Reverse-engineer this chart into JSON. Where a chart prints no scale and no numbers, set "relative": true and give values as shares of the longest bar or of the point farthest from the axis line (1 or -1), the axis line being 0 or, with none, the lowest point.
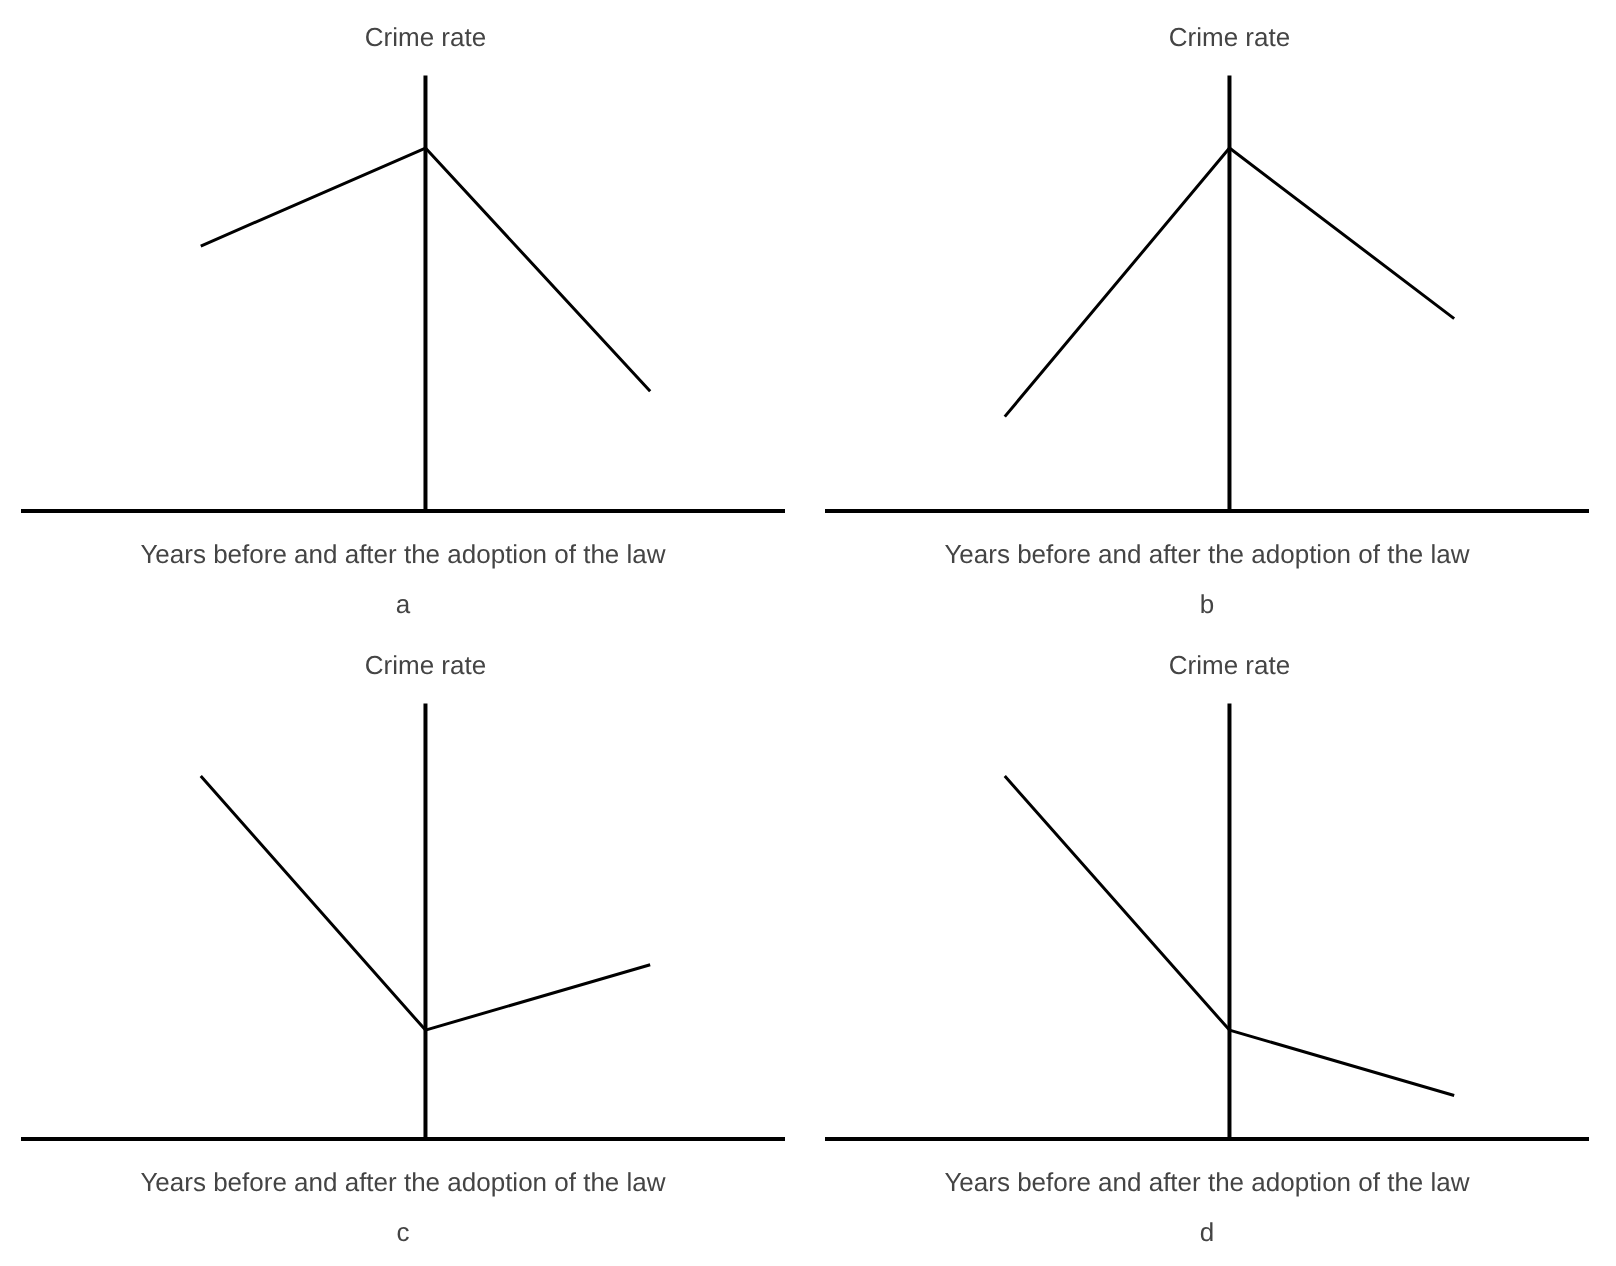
{
  "chart_data": [
    {
      "type": "line",
      "relative": true,
      "ylabel": "Crime rate",
      "xlabel": "Years before and after the adoption of the law",
      "categories": [
        null,
        null,
        null
      ],
      "series": [
        {
          "color": "#000000",
          "values": [
            0.73,
            1,
            0.33
          ]
        }
      ],
      "annotations": [
        "a"
      ]
    },
    {
      "type": "line",
      "relative": true,
      "ylabel": "Crime rate",
      "xlabel": "Years before and after the adoption of the law",
      "categories": [
        null,
        null,
        null
      ],
      "series": [
        {
          "color": "#000000",
          "values": [
            0.26,
            1,
            0.53
          ]
        }
      ],
      "annotations": [
        "b"
      ]
    },
    {
      "type": "line",
      "relative": true,
      "ylabel": "Crime rate",
      "xlabel": "Years before and after the adoption of the law",
      "categories": [
        null,
        null,
        null
      ],
      "series": [
        {
          "color": "#000000",
          "values": [
            1,
            0.3,
            0.48
          ]
        }
      ],
      "annotations": [
        "c"
      ]
    },
    {
      "type": "line",
      "relative": true,
      "ylabel": "Crime rate",
      "xlabel": "Years before and after the adoption of the law",
      "categories": [
        null,
        null,
        null
      ],
      "series": [
        {
          "color": "#000000",
          "values": [
            1,
            0.3,
            0.12
          ]
        }
      ],
      "annotations": [
        "d"
      ]
    }
  ]
}
